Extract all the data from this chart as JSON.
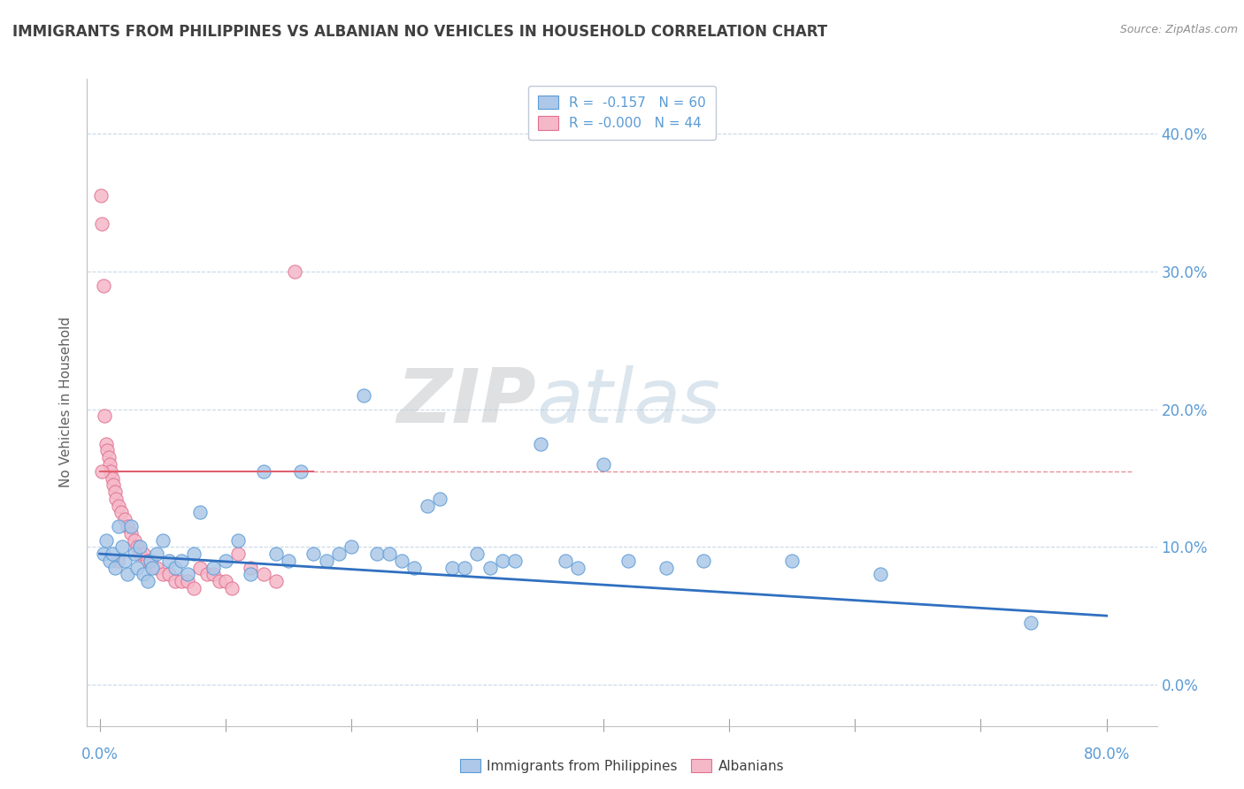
{
  "title": "IMMIGRANTS FROM PHILIPPINES VS ALBANIAN NO VEHICLES IN HOUSEHOLD CORRELATION CHART",
  "source": "Source: ZipAtlas.com",
  "ylabel": "No Vehicles in Household",
  "ytick_vals": [
    0,
    10,
    20,
    30,
    40
  ],
  "xlim": [
    -1,
    84
  ],
  "ylim": [
    -3,
    44
  ],
  "legend_r1": "R =  -0.157",
  "legend_n1": "N = 60",
  "legend_r2": "R = -0.000",
  "legend_n2": "N = 44",
  "watermark_zip": "ZIP",
  "watermark_atlas": "atlas",
  "blue_color": "#adc8e8",
  "blue_edge_color": "#5b9bd5",
  "pink_color": "#f5b8c8",
  "pink_edge_color": "#e07090",
  "blue_line_color": "#3070c0",
  "pink_line_color": "#e06070",
  "title_color": "#404040",
  "axis_label_color": "#5b9bd5",
  "grid_color": "#c8d8e8",
  "blue_scatter": [
    [
      0.3,
      9.5
    ],
    [
      0.5,
      10.5
    ],
    [
      0.8,
      9.0
    ],
    [
      1.0,
      9.5
    ],
    [
      1.2,
      8.5
    ],
    [
      1.5,
      11.5
    ],
    [
      1.8,
      10.0
    ],
    [
      2.0,
      9.0
    ],
    [
      2.2,
      8.0
    ],
    [
      2.5,
      11.5
    ],
    [
      2.8,
      9.5
    ],
    [
      3.0,
      8.5
    ],
    [
      3.2,
      10.0
    ],
    [
      3.5,
      8.0
    ],
    [
      3.8,
      7.5
    ],
    [
      4.0,
      9.0
    ],
    [
      4.2,
      8.5
    ],
    [
      4.5,
      9.5
    ],
    [
      5.0,
      10.5
    ],
    [
      5.5,
      9.0
    ],
    [
      6.0,
      8.5
    ],
    [
      6.5,
      9.0
    ],
    [
      7.0,
      8.0
    ],
    [
      7.5,
      9.5
    ],
    [
      8.0,
      12.5
    ],
    [
      9.0,
      8.5
    ],
    [
      10.0,
      9.0
    ],
    [
      11.0,
      10.5
    ],
    [
      12.0,
      8.0
    ],
    [
      13.0,
      15.5
    ],
    [
      14.0,
      9.5
    ],
    [
      15.0,
      9.0
    ],
    [
      16.0,
      15.5
    ],
    [
      17.0,
      9.5
    ],
    [
      18.0,
      9.0
    ],
    [
      19.0,
      9.5
    ],
    [
      20.0,
      10.0
    ],
    [
      21.0,
      21.0
    ],
    [
      22.0,
      9.5
    ],
    [
      23.0,
      9.5
    ],
    [
      24.0,
      9.0
    ],
    [
      25.0,
      8.5
    ],
    [
      26.0,
      13.0
    ],
    [
      27.0,
      13.5
    ],
    [
      28.0,
      8.5
    ],
    [
      29.0,
      8.5
    ],
    [
      30.0,
      9.5
    ],
    [
      31.0,
      8.5
    ],
    [
      32.0,
      9.0
    ],
    [
      33.0,
      9.0
    ],
    [
      35.0,
      17.5
    ],
    [
      37.0,
      9.0
    ],
    [
      38.0,
      8.5
    ],
    [
      40.0,
      16.0
    ],
    [
      42.0,
      9.0
    ],
    [
      45.0,
      8.5
    ],
    [
      48.0,
      9.0
    ],
    [
      55.0,
      9.0
    ],
    [
      62.0,
      8.0
    ],
    [
      74.0,
      4.5
    ]
  ],
  "pink_scatter": [
    [
      0.1,
      35.5
    ],
    [
      0.2,
      33.5
    ],
    [
      0.3,
      29.0
    ],
    [
      0.4,
      19.5
    ],
    [
      0.5,
      17.5
    ],
    [
      0.6,
      17.0
    ],
    [
      0.7,
      16.5
    ],
    [
      0.8,
      16.0
    ],
    [
      0.9,
      15.5
    ],
    [
      1.0,
      15.0
    ],
    [
      1.1,
      14.5
    ],
    [
      1.2,
      14.0
    ],
    [
      1.3,
      13.5
    ],
    [
      1.5,
      13.0
    ],
    [
      1.7,
      12.5
    ],
    [
      2.0,
      12.0
    ],
    [
      2.2,
      11.5
    ],
    [
      2.5,
      11.0
    ],
    [
      2.8,
      10.5
    ],
    [
      3.0,
      10.0
    ],
    [
      3.2,
      9.5
    ],
    [
      3.5,
      9.5
    ],
    [
      3.8,
      9.0
    ],
    [
      4.0,
      9.0
    ],
    [
      4.5,
      8.5
    ],
    [
      5.0,
      8.0
    ],
    [
      5.5,
      8.0
    ],
    [
      6.0,
      7.5
    ],
    [
      6.5,
      7.5
    ],
    [
      7.0,
      7.5
    ],
    [
      7.5,
      7.0
    ],
    [
      8.0,
      8.5
    ],
    [
      8.5,
      8.0
    ],
    [
      9.0,
      8.0
    ],
    [
      9.5,
      7.5
    ],
    [
      10.0,
      7.5
    ],
    [
      10.5,
      7.0
    ],
    [
      11.0,
      9.5
    ],
    [
      12.0,
      8.5
    ],
    [
      13.0,
      8.0
    ],
    [
      14.0,
      7.5
    ],
    [
      15.5,
      30.0
    ],
    [
      0.15,
      15.5
    ],
    [
      1.4,
      9.0
    ]
  ],
  "blue_line_x": [
    0,
    80
  ],
  "blue_line_y": [
    9.5,
    5.0
  ],
  "pink_line_x": [
    0,
    80
  ],
  "pink_line_y": [
    15.5,
    15.5
  ]
}
